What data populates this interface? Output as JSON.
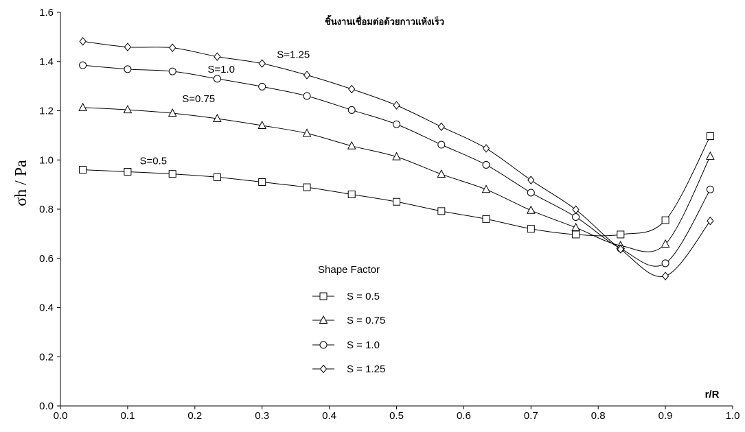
{
  "chart_data": {
    "type": "line",
    "title": "ชิ้นงานเชื่อมต่อด้วยกาวแห้งเร็ว",
    "xlabel": "r/R",
    "ylabel": "σh / Pa",
    "xlim": [
      0.0,
      1.0
    ],
    "ylim": [
      0.0,
      1.6
    ],
    "xticks": [
      "0.0",
      "0.1",
      "0.2",
      "0.3",
      "0.4",
      "0.5",
      "0.6",
      "0.7",
      "0.8",
      "0.9",
      "1.0"
    ],
    "yticks": [
      "0.0",
      "0.2",
      "0.4",
      "0.6",
      "0.8",
      "1.0",
      "1.2",
      "1.4",
      "1.6"
    ],
    "grid": false,
    "legend_title": "Shape Factor",
    "legend_position": "center-left",
    "x": [
      0.0333,
      0.1,
      0.1667,
      0.2333,
      0.3,
      0.3667,
      0.4333,
      0.5,
      0.5667,
      0.6333,
      0.7,
      0.7667,
      0.8333,
      0.9,
      0.9667
    ],
    "series": [
      {
        "name": "S = 0.5",
        "marker": "square",
        "annotation": "S=0.5",
        "values": [
          0.96,
          0.952,
          0.943,
          0.93,
          0.91,
          0.889,
          0.86,
          0.83,
          0.792,
          0.76,
          0.72,
          0.697,
          0.697,
          0.755,
          1.097
        ]
      },
      {
        "name": "S = 0.75",
        "marker": "triangle",
        "annotation": "S=0.75",
        "values": [
          1.213,
          1.204,
          1.19,
          1.168,
          1.14,
          1.108,
          1.057,
          1.013,
          0.942,
          0.88,
          0.795,
          0.725,
          0.652,
          0.658,
          1.015
        ]
      },
      {
        "name": "S = 1.0",
        "marker": "circle",
        "annotation": "S=1.0",
        "values": [
          1.385,
          1.369,
          1.36,
          1.33,
          1.298,
          1.26,
          1.203,
          1.145,
          1.062,
          0.98,
          0.867,
          0.768,
          0.64,
          0.58,
          0.88
        ]
      },
      {
        "name": "S = 1.25",
        "marker": "diamond",
        "annotation": "S=1.25",
        "values": [
          1.482,
          1.459,
          1.456,
          1.42,
          1.392,
          1.345,
          1.288,
          1.222,
          1.135,
          1.047,
          0.918,
          0.798,
          0.637,
          0.528,
          0.752
        ]
      }
    ]
  }
}
